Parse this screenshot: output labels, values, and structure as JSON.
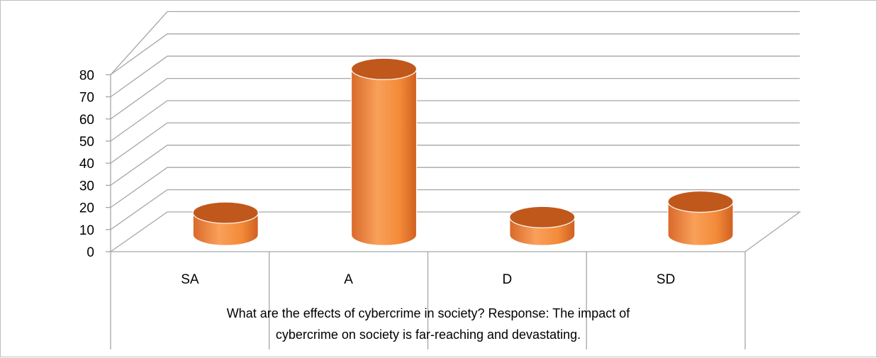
{
  "chart_data": {
    "type": "bar",
    "style": "3d-cylinder",
    "categories": [
      "SA",
      "A",
      "D",
      "SD"
    ],
    "values": [
      10,
      75,
      8,
      15
    ],
    "yticks": [
      "0",
      "10",
      "20",
      "30",
      "40",
      "50",
      "60",
      "70",
      "80"
    ],
    "ylim": [
      0,
      80
    ],
    "xlabel_lines": [
      "What are the effects of cybercrime in society? Response: The impact of",
      "cybercrime on society is far-reaching and devastating."
    ],
    "grid": true,
    "colors": {
      "bar_light": "#f79646",
      "bar_dark": "#d9692a",
      "bar_top": "#c0581c",
      "grid": "#a6a6a6"
    }
  }
}
